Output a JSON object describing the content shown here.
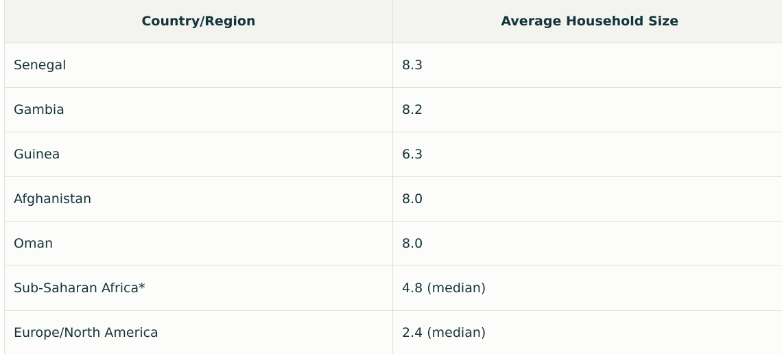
{
  "table": {
    "header": [
      "Country/Region",
      "Average Household Size"
    ],
    "rows": [
      [
        "Senegal",
        "8.3"
      ],
      [
        "Gambia",
        "8.2"
      ],
      [
        "Guinea",
        "6.3"
      ],
      [
        "Afghanistan",
        "8.0"
      ],
      [
        "Oman",
        "8.0"
      ],
      [
        "Sub-Saharan Africa*",
        "4.8 (median)"
      ],
      [
        "Europe/North America",
        "2.4 (median)"
      ]
    ]
  }
}
